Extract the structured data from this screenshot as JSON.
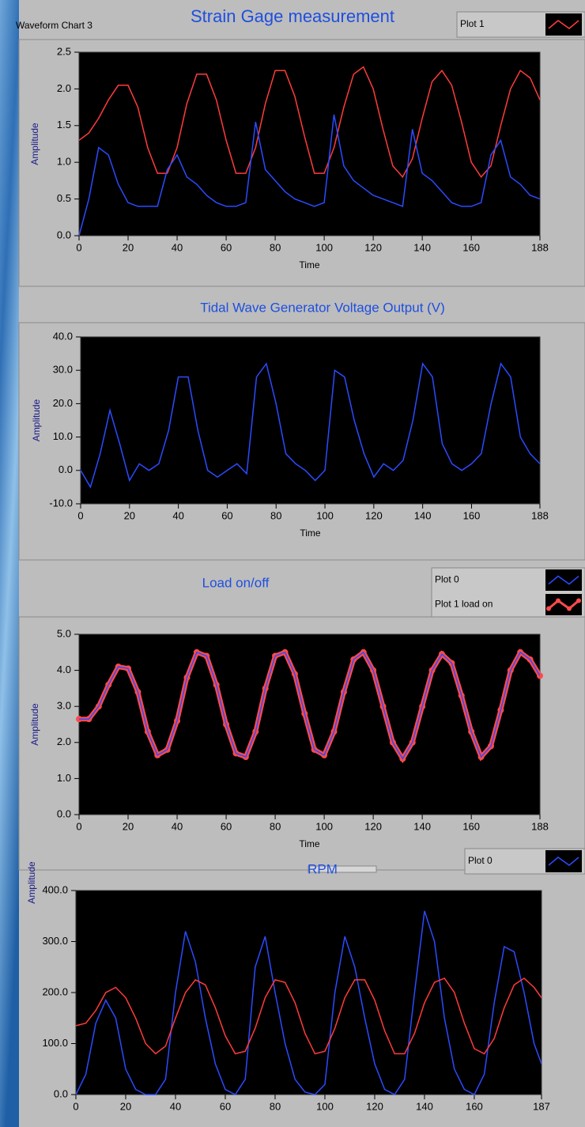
{
  "chart_data": [
    {
      "type": "line",
      "label": "Waveform Chart 3",
      "title": "Strain Gage measurement",
      "x_label": "Time",
      "y_label": "Amplitude",
      "x": [
        0,
        4,
        8,
        12,
        16,
        20,
        24,
        28,
        32,
        36,
        40,
        44,
        48,
        52,
        56,
        60,
        64,
        68,
        72,
        76,
        80,
        84,
        88,
        92,
        96,
        100,
        104,
        108,
        112,
        116,
        120,
        124,
        128,
        132,
        136,
        140,
        144,
        148,
        152,
        156,
        160,
        164,
        168,
        172,
        176,
        180,
        184,
        188
      ],
      "series": [
        {
          "name": "Plot 1",
          "color": "#ff3b3b",
          "values": [
            1.3,
            1.4,
            1.6,
            1.85,
            2.05,
            2.05,
            1.75,
            1.2,
            0.85,
            0.85,
            1.2,
            1.8,
            2.2,
            2.2,
            1.85,
            1.3,
            0.85,
            0.85,
            1.2,
            1.8,
            2.25,
            2.25,
            1.9,
            1.35,
            0.85,
            0.85,
            1.2,
            1.75,
            2.2,
            2.3,
            2.0,
            1.45,
            0.95,
            0.8,
            1.05,
            1.6,
            2.1,
            2.25,
            2.05,
            1.55,
            1.0,
            0.8,
            0.95,
            1.5,
            2.0,
            2.25,
            2.15,
            1.85
          ]
        },
        {
          "color": "#2b4bff",
          "values": [
            0.0,
            0.5,
            1.2,
            1.1,
            0.7,
            0.45,
            0.4,
            0.4,
            0.4,
            0.9,
            1.1,
            0.8,
            0.7,
            0.55,
            0.45,
            0.4,
            0.4,
            0.45,
            1.55,
            0.9,
            0.75,
            0.6,
            0.5,
            0.45,
            0.4,
            0.45,
            1.65,
            0.95,
            0.75,
            0.65,
            0.55,
            0.5,
            0.45,
            0.4,
            1.45,
            0.85,
            0.75,
            0.6,
            0.45,
            0.4,
            0.4,
            0.45,
            1.1,
            1.3,
            0.8,
            0.7,
            0.55,
            0.5
          ]
        }
      ],
      "xlim": [
        0,
        188
      ],
      "xticks": [
        0,
        20,
        40,
        60,
        80,
        100,
        120,
        140,
        160,
        188
      ],
      "ylim": [
        0,
        2.5
      ],
      "yticks": [
        {
          "value": 0,
          "label": "0.0"
        },
        0.5,
        {
          "value": 1,
          "label": "1.0"
        },
        1.5,
        {
          "value": 2,
          "label": "2.0"
        },
        2.5
      ]
    },
    {
      "type": "line",
      "title": "Tidal Wave Generator Voltage Output (V)",
      "x_label": "Time",
      "y_label": "Amplitude",
      "x": [
        0,
        4,
        8,
        12,
        16,
        20,
        24,
        28,
        32,
        36,
        40,
        44,
        48,
        52,
        56,
        60,
        64,
        68,
        72,
        76,
        80,
        84,
        88,
        92,
        96,
        100,
        104,
        108,
        112,
        116,
        120,
        124,
        128,
        132,
        136,
        140,
        144,
        148,
        152,
        156,
        160,
        164,
        168,
        172,
        176,
        180,
        184,
        188
      ],
      "series": [
        {
          "color": "#2b4bff",
          "values": [
            0,
            -5,
            5,
            18,
            8,
            -3,
            2,
            0,
            2,
            12,
            28,
            28,
            12,
            0,
            -2,
            0,
            2,
            -1,
            28,
            32,
            20,
            5,
            2,
            0,
            -3,
            0,
            30,
            28,
            15,
            5,
            -2,
            2,
            0,
            3,
            15,
            32,
            28,
            8,
            2,
            0,
            2,
            5,
            20,
            32,
            28,
            10,
            5,
            2
          ]
        }
      ],
      "xlim": [
        0,
        188
      ],
      "xticks": [
        0,
        20,
        40,
        60,
        80,
        100,
        120,
        140,
        160,
        188
      ],
      "ylim": [
        -10,
        40
      ],
      "yticks": [
        {
          "value": -10,
          "label": "-10.0"
        },
        {
          "value": 0,
          "label": "0.0"
        },
        {
          "value": 10,
          "label": "10.0"
        },
        {
          "value": 20,
          "label": "20.0"
        },
        {
          "value": 30,
          "label": "30.0"
        },
        {
          "value": 40,
          "label": "40.0"
        }
      ]
    },
    {
      "type": "line",
      "title": "Load on/off",
      "x_label": "Time",
      "y_label": "Amplitude",
      "x": [
        0,
        4,
        8,
        12,
        16,
        20,
        24,
        28,
        32,
        36,
        40,
        44,
        48,
        52,
        56,
        60,
        64,
        68,
        72,
        76,
        80,
        84,
        88,
        92,
        96,
        100,
        104,
        108,
        112,
        116,
        120,
        124,
        128,
        132,
        136,
        140,
        144,
        148,
        152,
        156,
        160,
        164,
        168,
        172,
        176,
        180,
        184,
        188
      ],
      "series": [
        {
          "name": "Plot 0",
          "color": "#2b4bff",
          "values": [
            2.65,
            2.65,
            3.0,
            3.6,
            4.1,
            4.05,
            3.4,
            2.3,
            1.65,
            1.8,
            2.6,
            3.8,
            4.5,
            4.4,
            3.6,
            2.5,
            1.7,
            1.6,
            2.3,
            3.5,
            4.4,
            4.5,
            3.9,
            2.8,
            1.8,
            1.65,
            2.3,
            3.4,
            4.3,
            4.5,
            4.0,
            3.0,
            2.0,
            1.55,
            2.0,
            3.0,
            4.0,
            4.45,
            4.2,
            3.3,
            2.3,
            1.6,
            1.9,
            2.9,
            4.0,
            4.5,
            4.3,
            3.85
          ]
        },
        {
          "name": "Plot 1  load on",
          "color": "#ff4a4a",
          "markers": true,
          "values": [
            2.65,
            2.65,
            3.0,
            3.6,
            4.1,
            4.05,
            3.4,
            2.3,
            1.65,
            1.8,
            2.6,
            3.8,
            4.5,
            4.4,
            3.6,
            2.5,
            1.7,
            1.6,
            2.3,
            3.5,
            4.4,
            4.5,
            3.9,
            2.8,
            1.8,
            1.65,
            2.3,
            3.4,
            4.3,
            4.5,
            4.0,
            3.0,
            2.0,
            1.55,
            2.0,
            3.0,
            4.0,
            4.45,
            4.2,
            3.3,
            2.3,
            1.6,
            1.9,
            2.9,
            4.0,
            4.5,
            4.3,
            3.85
          ]
        }
      ],
      "xlim": [
        0,
        188
      ],
      "xticks": [
        0,
        20,
        40,
        60,
        80,
        100,
        120,
        140,
        160,
        188
      ],
      "ylim": [
        0,
        5
      ],
      "yticks": [
        {
          "value": 0,
          "label": "0.0"
        },
        {
          "value": 1,
          "label": "1.0"
        },
        {
          "value": 2,
          "label": "2.0"
        },
        {
          "value": 3,
          "label": "3.0"
        },
        {
          "value": 4,
          "label": "4.0"
        },
        {
          "value": 5,
          "label": "5.0"
        }
      ]
    },
    {
      "type": "line",
      "title": "RPM",
      "y_label": "Amplitude",
      "x": [
        0,
        4,
        8,
        12,
        16,
        20,
        24,
        28,
        32,
        36,
        40,
        44,
        48,
        52,
        56,
        60,
        64,
        68,
        72,
        76,
        80,
        84,
        88,
        92,
        96,
        100,
        104,
        108,
        112,
        116,
        120,
        124,
        128,
        132,
        136,
        140,
        144,
        148,
        152,
        156,
        160,
        164,
        168,
        172,
        176,
        180,
        184,
        187
      ],
      "series": [
        {
          "name": "Plot 0",
          "color": "#2b4bff",
          "values": [
            0,
            40,
            140,
            185,
            150,
            50,
            10,
            0,
            0,
            30,
            200,
            320,
            260,
            150,
            60,
            10,
            0,
            30,
            250,
            310,
            200,
            100,
            30,
            5,
            0,
            20,
            200,
            310,
            250,
            150,
            60,
            10,
            0,
            30,
            200,
            360,
            300,
            150,
            50,
            10,
            0,
            40,
            180,
            290,
            280,
            200,
            100,
            60
          ]
        },
        {
          "color": "#ff3b3b",
          "values": [
            135,
            140,
            165,
            200,
            210,
            190,
            150,
            100,
            80,
            95,
            150,
            200,
            225,
            215,
            170,
            115,
            80,
            85,
            130,
            190,
            225,
            220,
            180,
            120,
            80,
            85,
            130,
            190,
            225,
            225,
            185,
            125,
            80,
            80,
            120,
            180,
            220,
            228,
            200,
            140,
            90,
            80,
            110,
            170,
            215,
            228,
            210,
            190
          ]
        }
      ],
      "xlim": [
        0,
        187
      ],
      "xticks": [
        0,
        20,
        40,
        60,
        80,
        100,
        120,
        140,
        160,
        187
      ],
      "ylim": [
        0,
        400
      ],
      "yticks": [
        {
          "value": 0,
          "label": "0.0"
        },
        {
          "value": 100,
          "label": "100.0"
        },
        {
          "value": 200,
          "label": "200.0"
        },
        {
          "value": 300,
          "label": "300.0"
        },
        {
          "value": 400,
          "label": "400.0"
        }
      ]
    }
  ]
}
